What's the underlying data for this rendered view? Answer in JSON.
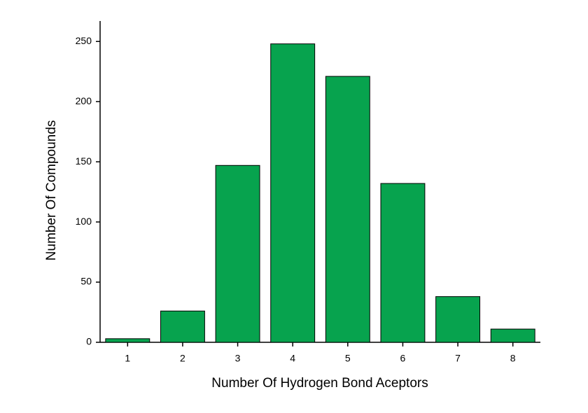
{
  "chart_data": {
    "type": "bar",
    "x_label": "Number Of Hydrogen Bond Aceptors",
    "y_label": "Number Of Compounds",
    "categories": [
      "1",
      "2",
      "3",
      "4",
      "5",
      "6",
      "7",
      "8"
    ],
    "values": [
      3,
      26,
      147,
      248,
      221,
      132,
      38,
      11
    ],
    "color": "#07a34e",
    "ylim": [
      0,
      267
    ],
    "yticks": [
      0,
      50,
      100,
      150,
      200,
      250
    ],
    "grid": false
  }
}
